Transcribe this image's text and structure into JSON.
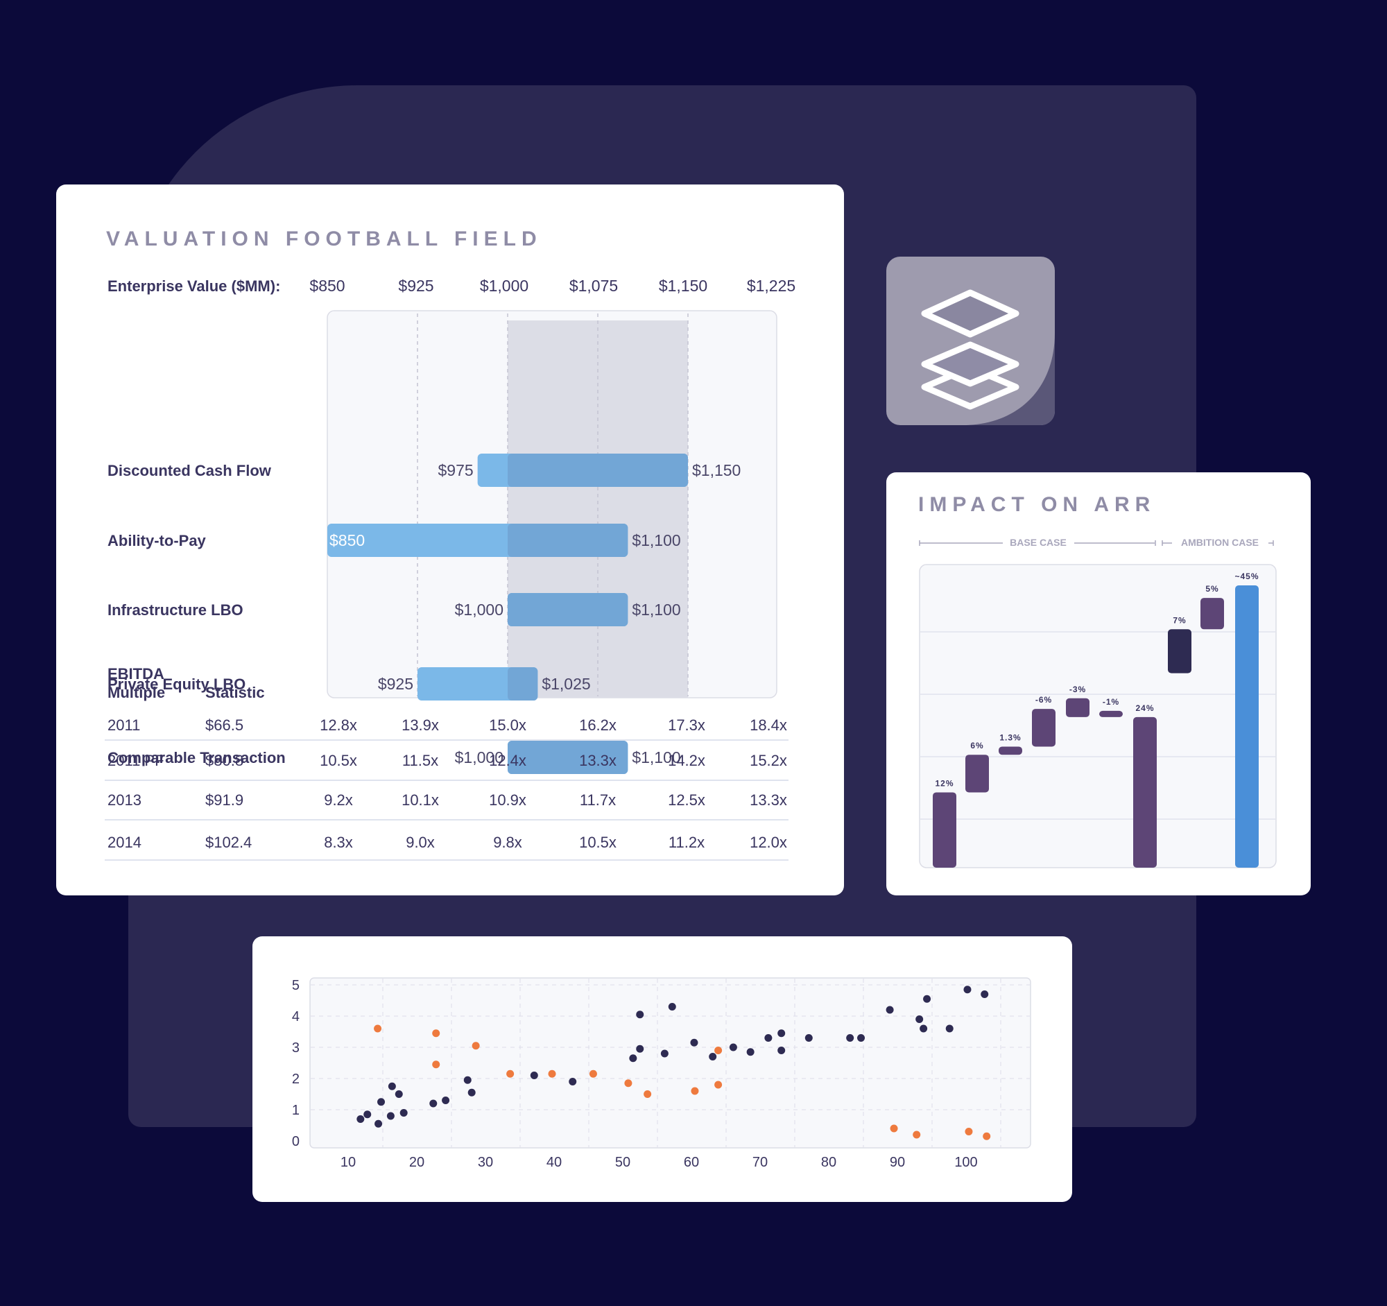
{
  "colors": {
    "background": "#0c0a3a",
    "panel": "#2b2852",
    "range_bar": "#7bb8e8",
    "range_bar_overlap": "#72a6d6",
    "highlight_band": "#dcdde6",
    "waterfall_bar": "#5d4576",
    "waterfall_dark": "#2e2b52",
    "waterfall_total": "#4a8fd8",
    "scatter_primary": "#2e2b52",
    "scatter_secondary": "#ee7a3e"
  },
  "icon": {
    "name": "stacked-layers-icon"
  },
  "football_field": {
    "title": "VALUATION FOOTBALL FIELD",
    "header_label": "Enterprise Value ($MM):",
    "multiple_header": [
      "EBITDA",
      "Multiple"
    ],
    "statistic_header": "Statistic",
    "table": [
      {
        "year": "2011",
        "stat": "$66.5",
        "multiples": [
          "12.8x",
          "13.9x",
          "15.0x",
          "16.2x",
          "17.3x",
          "18.4x"
        ]
      },
      {
        "year": "2011 PF",
        "stat": "$80.8",
        "multiples": [
          "10.5x",
          "11.5x",
          "12.4x",
          "13.3x",
          "14.2x",
          "15.2x"
        ]
      },
      {
        "year": "2013",
        "stat": "$91.9",
        "multiples": [
          "9.2x",
          "10.1x",
          "10.9x",
          "11.7x",
          "12.5x",
          "13.3x"
        ]
      },
      {
        "year": "2014",
        "stat": "$102.4",
        "multiples": [
          "8.3x",
          "9.0x",
          "9.8x",
          "10.5x",
          "11.2x",
          "12.0x"
        ]
      }
    ]
  },
  "arr": {
    "title": "IMPACT ON ARR",
    "base_case": "BASE CASE",
    "ambition_case": "AMBITION CASE"
  },
  "chart_data": [
    {
      "type": "bar",
      "orientation": "horizontal-range",
      "title": "VALUATION FOOTBALL FIELD",
      "xlabel": "Enterprise Value ($MM):",
      "x_ticks": [
        850,
        925,
        1000,
        1075,
        1150,
        1225
      ],
      "x_tick_labels": [
        "$850",
        "$925",
        "$1,000",
        "$1,075",
        "$1,150",
        "$1,225"
      ],
      "xlim": [
        850,
        1225
      ],
      "highlight_range": [
        1000,
        1150
      ],
      "grid": true,
      "categories": [
        "Discounted Cash Flow",
        "Ability-to-Pay",
        "Infrastructure LBO",
        "Private Equity LBO",
        "Comparable Transaction"
      ],
      "ranges": [
        {
          "low": 975,
          "high": 1150,
          "low_label": "$975",
          "high_label": "$1,150"
        },
        {
          "low": 850,
          "high": 1100,
          "low_label": "$850",
          "high_label": "$1,100"
        },
        {
          "low": 1000,
          "high": 1100,
          "low_label": "$1,000",
          "high_label": "$1,100"
        },
        {
          "low": 925,
          "high": 1025,
          "low_label": "$925",
          "high_label": "$1,025"
        },
        {
          "low": 1000,
          "high": 1100,
          "low_label": "$1,000",
          "high_label": "$1,100"
        }
      ]
    },
    {
      "type": "bar",
      "orientation": "waterfall",
      "title": "IMPACT ON ARR",
      "grid": true,
      "ylim": [
        0,
        45
      ],
      "steps": [
        {
          "label": "12%",
          "start": 0,
          "end": 12,
          "kind": "increase"
        },
        {
          "label": "6%",
          "start": 12,
          "end": 18,
          "kind": "increase"
        },
        {
          "label": "1.3%",
          "start": 18,
          "end": 19.3,
          "kind": "increase"
        },
        {
          "label": "-6%",
          "start": 25.3,
          "end": 19.3,
          "kind": "decrease"
        },
        {
          "label": "-3%",
          "start": 27,
          "end": 24,
          "kind": "decrease"
        },
        {
          "label": "-1%",
          "start": 25,
          "end": 24,
          "kind": "decrease"
        },
        {
          "label": "24%",
          "start": 0,
          "end": 24,
          "kind": "subtotal"
        },
        {
          "label": "7%",
          "start": 31,
          "end": 38,
          "kind": "ambition"
        },
        {
          "label": "5%",
          "start": 38,
          "end": 43,
          "kind": "increase"
        },
        {
          "label": "~45%",
          "start": 0,
          "end": 45,
          "kind": "total"
        }
      ]
    },
    {
      "type": "scatter",
      "xlim": [
        5,
        110
      ],
      "ylim": [
        0,
        5
      ],
      "x_ticks": [
        10,
        20,
        30,
        40,
        50,
        60,
        70,
        80,
        90,
        100
      ],
      "y_ticks": [
        0,
        1,
        2,
        3,
        4,
        5
      ],
      "grid": true,
      "series": [
        {
          "color": "#2e2b52",
          "points": [
            [
              11.8,
              0.7
            ],
            [
              12.8,
              0.85
            ],
            [
              14.4,
              0.55
            ],
            [
              14.8,
              1.25
            ],
            [
              16.2,
              0.8
            ],
            [
              16.4,
              1.75
            ],
            [
              17.4,
              1.5
            ],
            [
              18.1,
              0.9
            ],
            [
              22.4,
              1.2
            ],
            [
              24.2,
              1.3
            ],
            [
              27.4,
              1.95
            ],
            [
              28.0,
              1.55
            ],
            [
              37.1,
              2.1
            ],
            [
              42.7,
              1.9
            ],
            [
              51.5,
              2.65
            ],
            [
              52.5,
              2.95
            ],
            [
              52.5,
              4.05
            ],
            [
              56.1,
              2.8
            ],
            [
              57.2,
              4.3
            ],
            [
              60.4,
              3.15
            ],
            [
              63.1,
              2.7
            ],
            [
              66.1,
              3.0
            ],
            [
              68.6,
              2.85
            ],
            [
              71.2,
              3.3
            ],
            [
              73.1,
              3.45
            ],
            [
              73.1,
              2.9
            ],
            [
              77.1,
              3.3
            ],
            [
              83.1,
              3.3
            ],
            [
              84.7,
              3.3
            ],
            [
              88.9,
              4.2
            ],
            [
              93.2,
              3.9
            ],
            [
              93.8,
              3.6
            ],
            [
              94.3,
              4.55
            ],
            [
              97.6,
              3.6
            ],
            [
              100.2,
              4.85
            ],
            [
              102.7,
              4.7
            ]
          ]
        },
        {
          "color": "#ee7a3e",
          "points": [
            [
              14.3,
              3.6
            ],
            [
              22.8,
              3.45
            ],
            [
              22.8,
              2.45
            ],
            [
              28.6,
              3.05
            ],
            [
              33.6,
              2.15
            ],
            [
              39.7,
              2.15
            ],
            [
              45.7,
              2.15
            ],
            [
              50.8,
              1.85
            ],
            [
              53.6,
              1.5
            ],
            [
              60.5,
              1.6
            ],
            [
              63.9,
              2.9
            ],
            [
              63.9,
              1.8
            ],
            [
              89.5,
              0.4
            ],
            [
              92.8,
              0.2
            ],
            [
              100.4,
              0.3
            ],
            [
              103.0,
              0.15
            ]
          ]
        }
      ]
    }
  ]
}
